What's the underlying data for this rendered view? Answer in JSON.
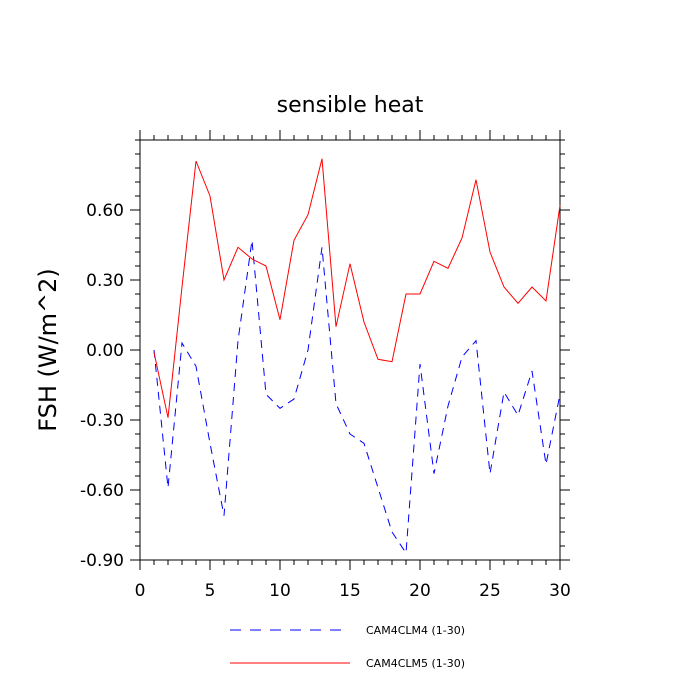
{
  "chart_data": {
    "type": "line",
    "title": "sensible heat",
    "xlabel": "",
    "ylabel": "FSH  (W/m^2)",
    "xlim": [
      0,
      30
    ],
    "ylim": [
      -0.9,
      0.9
    ],
    "x_ticks": [
      0,
      5,
      10,
      15,
      20,
      25,
      30
    ],
    "x_tick_labels": [
      "0",
      "5",
      "10",
      "15",
      "20",
      "25",
      "30"
    ],
    "y_ticks": [
      -0.9,
      -0.6,
      -0.3,
      0.0,
      0.3,
      0.6
    ],
    "y_tick_labels": [
      "-0.90",
      "-0.60",
      "-0.30",
      "0.00",
      "0.30",
      "0.60"
    ],
    "grid": false,
    "legend_position": "bottom",
    "x": [
      1,
      2,
      3,
      4,
      5,
      6,
      7,
      8,
      9,
      10,
      11,
      12,
      13,
      14,
      15,
      16,
      17,
      18,
      19,
      20,
      21,
      22,
      23,
      24,
      25,
      26,
      27,
      28,
      29,
      30
    ],
    "series": [
      {
        "name": "CAM4CLM4 (1-30)",
        "color": "#0000ff",
        "style": "dashed",
        "values": [
          0.0,
          -0.59,
          0.03,
          -0.07,
          -0.4,
          -0.71,
          0.04,
          0.47,
          -0.19,
          -0.25,
          -0.21,
          0.0,
          0.44,
          -0.23,
          -0.36,
          -0.4,
          -0.59,
          -0.78,
          -0.87,
          -0.06,
          -0.53,
          -0.24,
          -0.03,
          0.04,
          -0.53,
          -0.18,
          -0.28,
          -0.09,
          -0.49,
          -0.19
        ]
      },
      {
        "name": "CAM4CLM5 (1-30)",
        "color": "#ff0000",
        "style": "solid",
        "values": [
          -0.01,
          -0.29,
          0.27,
          0.81,
          0.66,
          0.3,
          0.44,
          0.39,
          0.36,
          0.13,
          0.47,
          0.58,
          0.82,
          0.1,
          0.37,
          0.12,
          -0.04,
          -0.05,
          0.24,
          0.24,
          0.38,
          0.35,
          0.48,
          0.73,
          0.42,
          0.27,
          0.2,
          0.27,
          0.21,
          0.62
        ]
      }
    ]
  }
}
